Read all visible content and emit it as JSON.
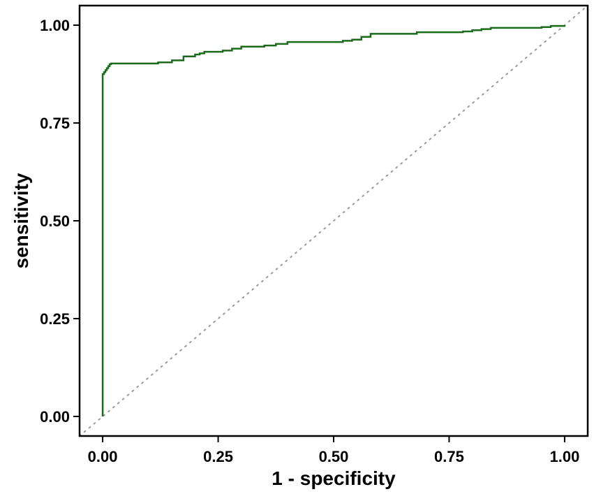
{
  "chart_data": {
    "type": "line",
    "xlabel": "1 - specificity",
    "ylabel": "sensitivity",
    "xlim": [
      -0.05,
      1.05
    ],
    "ylim": [
      -0.05,
      1.05
    ],
    "x_ticks": [
      0.0,
      0.25,
      0.5,
      0.75,
      1.0
    ],
    "y_ticks": [
      0.0,
      0.25,
      0.5,
      0.75,
      1.0
    ],
    "x_tick_labels": [
      "0.00",
      "0.25",
      "0.50",
      "0.75",
      "1.00"
    ],
    "y_tick_labels": [
      "0.00",
      "0.25",
      "0.50",
      "0.75",
      "1.00"
    ],
    "grid": false,
    "series": [
      {
        "color": "#1a6b1a",
        "style": "step",
        "x": [
          0.0,
          0.0,
          0.0,
          0.003,
          0.006,
          0.009,
          0.012,
          0.015,
          0.018,
          0.09,
          0.12,
          0.15,
          0.175,
          0.2,
          0.21,
          0.22,
          0.26,
          0.28,
          0.3,
          0.35,
          0.375,
          0.4,
          0.5,
          0.52,
          0.54,
          0.56,
          0.58,
          0.6,
          0.68,
          0.7,
          0.78,
          0.8,
          0.82,
          0.84,
          0.95,
          0.97,
          1.0
        ],
        "y": [
          0.0,
          0.7,
          0.875,
          0.88,
          0.885,
          0.89,
          0.895,
          0.9,
          0.902,
          0.902,
          0.905,
          0.91,
          0.92,
          0.925,
          0.928,
          0.932,
          0.935,
          0.94,
          0.945,
          0.948,
          0.952,
          0.957,
          0.957,
          0.96,
          0.963,
          0.97,
          0.978,
          0.978,
          0.982,
          0.982,
          0.984,
          0.987,
          0.99,
          0.993,
          0.995,
          0.998,
          1.0
        ]
      },
      {
        "color": "#999999",
        "style": "dotted",
        "x": [
          -0.05,
          1.05
        ],
        "y": [
          -0.05,
          1.05
        ]
      }
    ]
  }
}
